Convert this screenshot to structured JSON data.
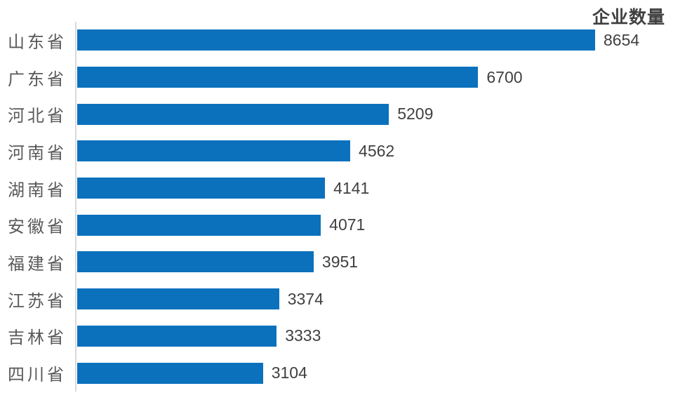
{
  "chart_data": {
    "type": "bar",
    "orientation": "horizontal",
    "title": "企业数量",
    "categories": [
      "山东省",
      "广东省",
      "河北省",
      "河南省",
      "湖南省",
      "安徽省",
      "福建省",
      "江苏省",
      "吉林省",
      "四川省"
    ],
    "values": [
      8654,
      6700,
      5209,
      4562,
      4141,
      4071,
      3951,
      3374,
      3333,
      3104
    ],
    "xlim": [
      0,
      8654
    ],
    "grid": false,
    "legend": false,
    "value_labels_shown": true,
    "bar_color": "#0b71bd",
    "category_label_color": "#595959",
    "value_label_color": "#404040",
    "title_color": "#404040",
    "axis_line_color": "#d9d9d9"
  }
}
